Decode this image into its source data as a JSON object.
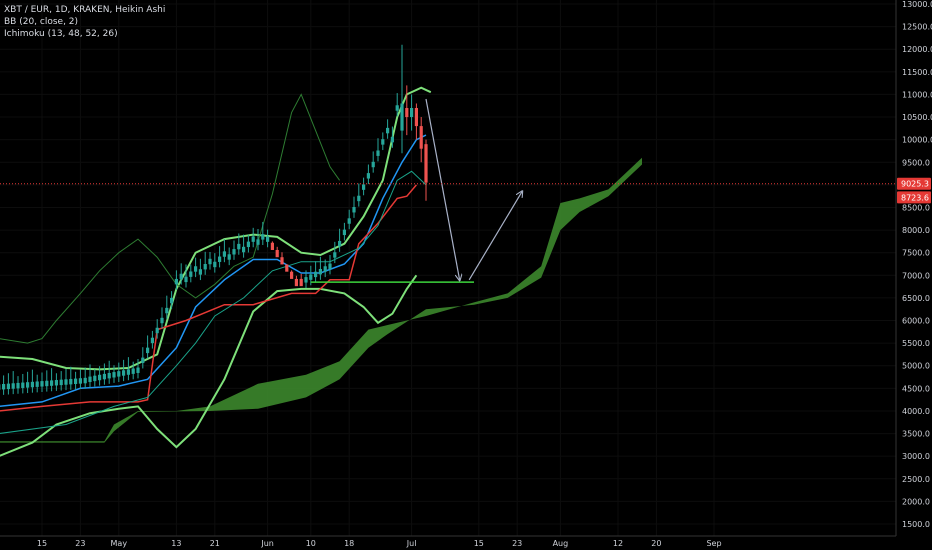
{
  "legend": {
    "symbol_line": "XBT / EUR, 1D, KRAKEN, Heikin Ashi",
    "bb_line": "BB (20, close, 2)",
    "ichimoku_line": "Ichimoku (13, 48, 52, 26)"
  },
  "colors": {
    "background": "#000000",
    "up_candle": "#26a69a",
    "down_candle": "#ef5350",
    "bb_band": "#7ee07a",
    "bb_basis": "#2196f3",
    "kijun": "#e53935",
    "tenkan": "#1aa38a",
    "chikou": "#2e7d32",
    "cloud": "#3f8f2f",
    "arrow": "#a9b2c8",
    "support_line": "#3cd43c",
    "price_line": "#e53935",
    "axis_text": "#d0d3da"
  },
  "price_tags": [
    {
      "value": "9025.3",
      "color": "#e53935"
    },
    {
      "value": "8723.6",
      "color": "#e53935"
    }
  ],
  "chart_data": {
    "type": "candlestick",
    "symbol": "XBT / EUR",
    "interval": "1D",
    "exchange": "KRAKEN",
    "ylim": [
      1500,
      13000
    ],
    "y_ticks": [
      "13000.0",
      "12500.0",
      "12000.0",
      "11500.0",
      "11000.0",
      "10500.0",
      "10000.0",
      "9500.0",
      "9000.0",
      "8500.0",
      "8000.0",
      "7500.0",
      "7000.0",
      "6500.0",
      "6000.0",
      "5500.0",
      "5000.0",
      "4500.0",
      "4000.0",
      "3500.0",
      "3000.0",
      "2500.0",
      "2000.0",
      "1500.0"
    ],
    "x_ticks": [
      "15",
      "23",
      "May",
      "13",
      "21",
      "Jun",
      "10",
      "18",
      "Jul",
      "15",
      "23",
      "Aug",
      "12",
      "20",
      "Sep"
    ],
    "candles_ohlc_summary": [
      {
        "period": "Apr 8–30",
        "range": [
          4500,
          5000
        ]
      },
      {
        "period": "May 1–12",
        "range": [
          4900,
          6700
        ]
      },
      {
        "period": "May 13–31",
        "range": [
          6700,
          7900
        ]
      },
      {
        "period": "Jun 1–13",
        "range": [
          6800,
          7900
        ]
      },
      {
        "period": "Jun 14–25",
        "range": [
          7500,
          10000
        ]
      },
      {
        "period": "Jun 26",
        "high": 12100,
        "low": 9700
      },
      {
        "period": "Jun 27–Jul 2",
        "range": [
          8700,
          10800
        ]
      }
    ],
    "last_price": 9025.3,
    "second_price": 8723.6,
    "support_level": 6850,
    "projection": [
      {
        "from": "Jul 1",
        "from_value": 10900,
        "to": "Jul 8",
        "to_value": 6900
      },
      {
        "from": "Jul 9",
        "from_value": 6900,
        "to": "Jul 20",
        "to_value": 8850
      }
    ]
  }
}
